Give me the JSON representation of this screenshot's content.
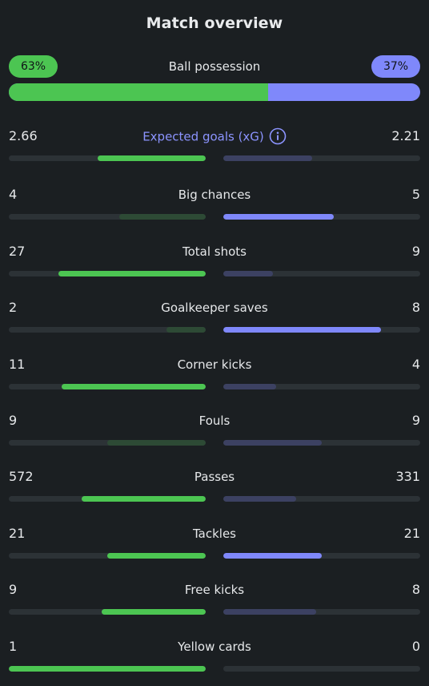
{
  "title": "Match overview",
  "possession": {
    "label": "Ball possession",
    "home_pct": 63,
    "away_pct": 37,
    "home_text": "63%",
    "away_text": "37%"
  },
  "colors": {
    "home_accent": "#4cc552",
    "away_accent": "#7f88fb",
    "home_dim": "#2d4a35",
    "away_dim": "#3c4162",
    "track": "#2c3236",
    "background": "#1b1f22",
    "xg_label": "#8c94ff"
  },
  "stats": [
    {
      "label": "Expected goals (xG)",
      "home": "2.66",
      "away": "2.21",
      "home_ratio": 0.55,
      "away_ratio": 0.45,
      "info_icon": "info-icon"
    },
    {
      "label": "Big chances",
      "home": "4",
      "away": "5",
      "home_ratio": 0.44,
      "away_ratio": 0.56
    },
    {
      "label": "Total shots",
      "home": "27",
      "away": "9",
      "home_ratio": 0.75,
      "away_ratio": 0.25
    },
    {
      "label": "Goalkeeper saves",
      "home": "2",
      "away": "8",
      "home_ratio": 0.2,
      "away_ratio": 0.8
    },
    {
      "label": "Corner kicks",
      "home": "11",
      "away": "4",
      "home_ratio": 0.73,
      "away_ratio": 0.27
    },
    {
      "label": "Fouls",
      "home": "9",
      "away": "9",
      "home_ratio": 0.5,
      "away_ratio": 0.5
    },
    {
      "label": "Passes",
      "home": "572",
      "away": "331",
      "home_ratio": 0.63,
      "away_ratio": 0.37
    },
    {
      "label": "Tackles",
      "home": "21",
      "away": "21",
      "home_ratio": 0.5,
      "away_ratio": 0.5
    },
    {
      "label": "Free kicks",
      "home": "9",
      "away": "8",
      "home_ratio": 0.53,
      "away_ratio": 0.47
    },
    {
      "label": "Yellow cards",
      "home": "1",
      "away": "0",
      "home_ratio": 1.0,
      "away_ratio": 0.0
    }
  ]
}
